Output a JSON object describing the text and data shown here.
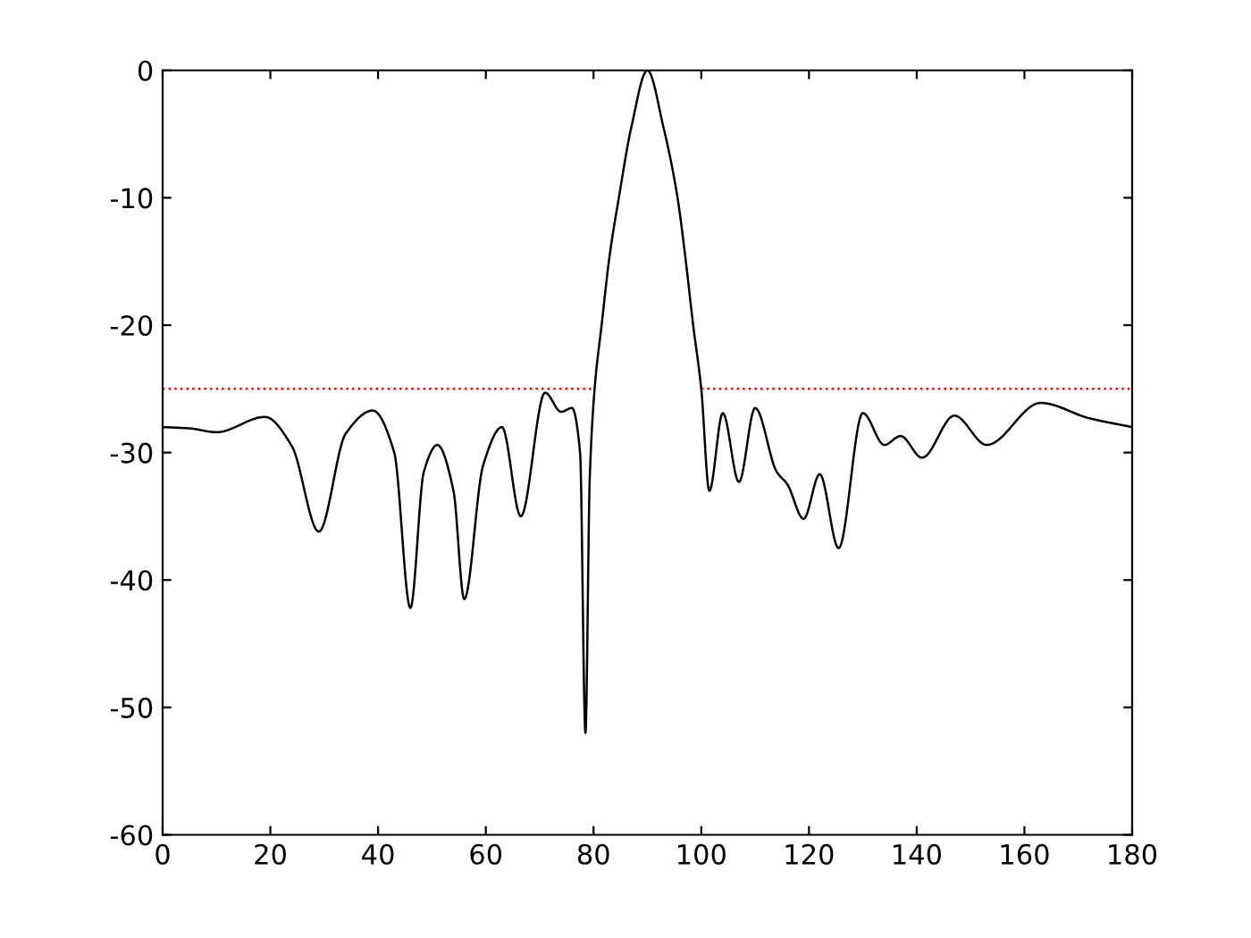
{
  "chart_data": {
    "type": "line",
    "xlim": [
      0,
      180
    ],
    "ylim": [
      -60,
      0
    ],
    "xticks": [
      0,
      20,
      40,
      60,
      80,
      100,
      120,
      140,
      160,
      180
    ],
    "yticks": [
      -60,
      -50,
      -40,
      -30,
      -20,
      -10,
      0
    ],
    "grid": false,
    "legend": false,
    "series": [
      {
        "color": "#ff0000",
        "line_style": "dotted",
        "x": [
          0,
          80,
          90,
          100,
          180
        ],
        "values": [
          -25,
          -25,
          null,
          -25,
          -25
        ]
      },
      {
        "color": "#000000",
        "line_style": "solid",
        "x": [
          0,
          5,
          10,
          19,
          24,
          29,
          34,
          39,
          43,
          46,
          48.5,
          51,
          54,
          56,
          59.5,
          63,
          66.5,
          71,
          74,
          76,
          77.5,
          78.5,
          79.3,
          80.2,
          81.5,
          83,
          84.7,
          87,
          90,
          93,
          95.6,
          97,
          98.5,
          100,
          101.5,
          104,
          107,
          110,
          114,
          116,
          119,
          122,
          125.5,
          130,
          134,
          137,
          141,
          147,
          153,
          163,
          172,
          180
        ],
        "values": [
          -28,
          -28.1,
          -28.4,
          -27.2,
          -29.5,
          -36.2,
          -28.5,
          -26.7,
          -30,
          -42.2,
          -31.5,
          -29.4,
          -33,
          -41.5,
          -31,
          -28,
          -35,
          -25.3,
          -26.8,
          -26.5,
          -30,
          -52,
          -32,
          -25,
          -20,
          -14.5,
          -10,
          -4.5,
          0,
          -4.5,
          -10,
          -14.5,
          -20,
          -25,
          -33,
          -26.9,
          -32.3,
          -26.5,
          -31.5,
          -32.5,
          -35.2,
          -31.7,
          -37.5,
          -26.9,
          -29.4,
          -28.7,
          -30.4,
          -27.1,
          -29.4,
          -26.1,
          -27.3,
          -28
        ]
      }
    ]
  }
}
